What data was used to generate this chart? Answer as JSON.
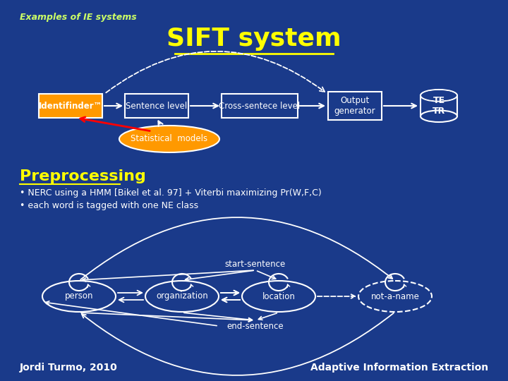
{
  "bg_color": "#1a3a8a",
  "title": "SIFT system",
  "subtitle": "Examples of IE systems",
  "title_color": "#ffff00",
  "subtitle_color": "#ccff66",
  "preprocessing_title": "Preprocessing",
  "bullet1": "• NERC using a HMM [Bikel et al. 97] + Viterbi maximizing Pr(W,F,C)",
  "bullet2": "• each word is tagged with one NE class",
  "footer_left": "Jordi Turmo, 2010",
  "footer_right": "Adaptive Information Extraction",
  "text_color": "#ffffff",
  "yellow_color": "#ffff00",
  "orange_color": "#ff9900",
  "node_labels": [
    "person",
    "organization",
    "location",
    "not-a-name"
  ],
  "flow_labels": [
    "Identifinder™",
    "Sentence level",
    "Cross-sentece level",
    "Output\ngenerator",
    "TE\nTR"
  ],
  "stat_label": "Statistical  models",
  "start_sentence": "start-sentence",
  "end_sentence": "end-sentence"
}
